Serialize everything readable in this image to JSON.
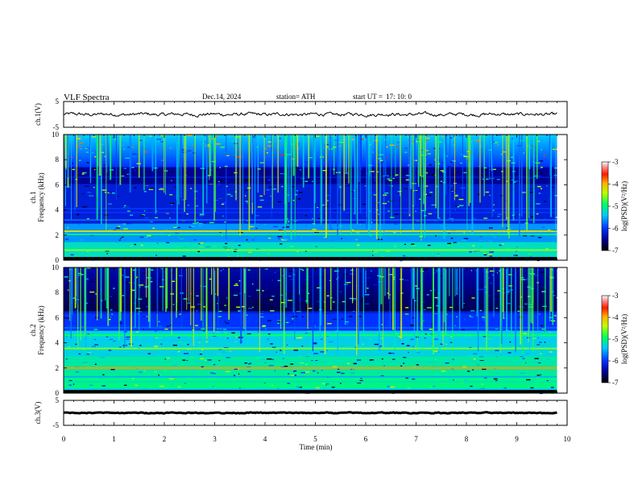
{
  "header": {
    "title": "VLF  Spectra",
    "date": "Dec.14, 2024",
    "station": "station= ATH",
    "start_ut_label": "start  UT  =",
    "start_ut_value": "17: 10: 0"
  },
  "chart_data": [
    {
      "type": "line",
      "name": "ch1-waveform",
      "ylabel": "ch.1(V)",
      "ylim": [
        -5,
        5
      ],
      "yticks": [
        "5",
        "-5"
      ],
      "xlim": [
        0,
        10
      ],
      "level": 0,
      "noise_amplitude": 0.45,
      "color": "#000000"
    },
    {
      "type": "heatmap",
      "name": "ch1-spectrogram",
      "ylabel": "ch.1\nFrequency  (kHz)",
      "ylim": [
        0,
        10
      ],
      "yticks": [
        "0",
        "2",
        "4",
        "6",
        "8",
        "10"
      ],
      "xlim": [
        0,
        10
      ],
      "colorbar": {
        "label": "log(PSD)(V²/Hz)",
        "range": [
          -7,
          -3
        ],
        "ticks": [
          "-3",
          "-4",
          "-5",
          "-6",
          "-7"
        ]
      },
      "bands_khz": [
        {
          "f": 0.2,
          "lv": -5.8
        },
        {
          "f": 0.8,
          "lv": -4.6
        },
        {
          "f": 1.0,
          "lv": -5.2
        },
        {
          "f": 1.5,
          "lv": -5.6
        },
        {
          "f": 2.05,
          "lv": -5.0
        },
        {
          "f": 2.3,
          "lv": -4.2
        },
        {
          "f": 2.8,
          "lv": -5.6
        },
        {
          "f": 3.2,
          "lv": -5.8
        },
        {
          "f": 3.8,
          "lv": -6.0
        },
        {
          "f": 4.1,
          "lv": -6.0
        },
        {
          "f": 5.0,
          "lv": -6.2
        },
        {
          "f": 6.0,
          "lv": -6.2
        },
        {
          "f": 6.6,
          "lv": -6.3
        }
      ]
    },
    {
      "type": "heatmap",
      "name": "ch2-spectrogram",
      "ylabel": "ch.2\nFrequency  (kHz)",
      "ylim": [
        0,
        10
      ],
      "yticks": [
        "0",
        "2",
        "4",
        "6",
        "8",
        "10"
      ],
      "xlim": [
        0,
        10
      ],
      "colorbar": {
        "label": "log(PSD)(V²/Hz)",
        "range": [
          -7,
          -3
        ],
        "ticks": [
          "-3",
          "-4",
          "-5",
          "-6",
          "-7"
        ]
      },
      "bands_khz": [
        {
          "f": 0.3,
          "lv": -5.4
        },
        {
          "f": 0.9,
          "lv": -5.2
        },
        {
          "f": 1.3,
          "lv": -5.5
        },
        {
          "f": 2.0,
          "lv": -3.9
        },
        {
          "f": 2.5,
          "lv": -5.2
        },
        {
          "f": 3.0,
          "lv": -5.3
        },
        {
          "f": 3.55,
          "lv": -4.6
        },
        {
          "f": 4.2,
          "lv": -5.4
        },
        {
          "f": 4.6,
          "lv": -4.9
        },
        {
          "f": 5.2,
          "lv": -5.8
        },
        {
          "f": 6.4,
          "lv": -6.2
        }
      ]
    },
    {
      "type": "line",
      "name": "ch3-waveform",
      "ylabel": "ch.3(V)",
      "ylim": [
        -5,
        5
      ],
      "yticks": [
        "5",
        "-5"
      ],
      "xlim": [
        0,
        10
      ],
      "level": 0,
      "noise_amplitude": 0.12,
      "color": "#000000"
    }
  ],
  "x_axis": {
    "label": "Time  (min)",
    "ticks": [
      "0",
      "1",
      "2",
      "3",
      "4",
      "5",
      "6",
      "7",
      "8",
      "9",
      "10"
    ]
  }
}
